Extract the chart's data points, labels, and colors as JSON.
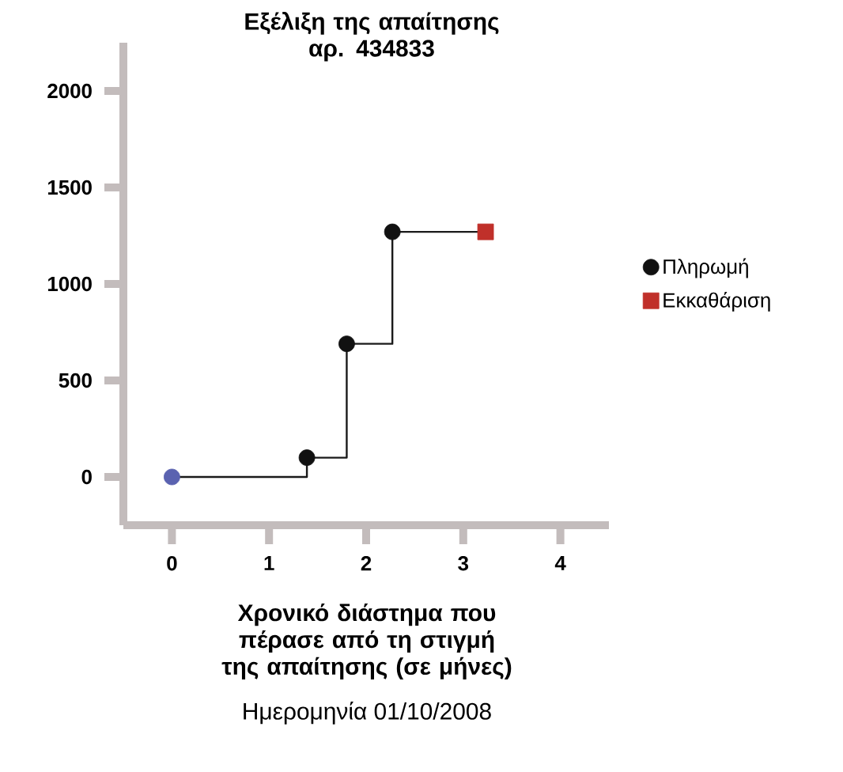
{
  "chart_data": {
    "type": "scatter",
    "title": "Εξέλιξη της απαίτησης αρ. 434833",
    "xlabel": "Χρονικό διάστημα που πέρασε από τη στιγμή της απαίτησης (σε μήνες)",
    "annotations": [
      "Ημερομηνία 01/10/2008"
    ],
    "xlim": [
      -0.5,
      4.5
    ],
    "ylim": [
      -250,
      2250
    ],
    "xticks": [
      0,
      1,
      2,
      3,
      4
    ],
    "yticks": [
      0,
      500,
      1000,
      1500,
      2000
    ],
    "legend": "right",
    "grid": false,
    "series": [
      {
        "type": "step",
        "color": "#1a1a1a",
        "x": [
          0,
          1.39,
          1.8,
          2.27,
          3.23
        ],
        "values": [
          0,
          100,
          690,
          1270,
          1270
        ],
        "marker": "none"
      },
      {
        "color": "#5a62b0",
        "x": [
          0
        ],
        "values": [
          0
        ],
        "marker": "circle"
      },
      {
        "name": "Πληρωμή",
        "color": "#111111",
        "x": [
          1.39,
          1.8,
          2.27
        ],
        "values": [
          100,
          690,
          1270
        ],
        "marker": "circle"
      },
      {
        "name": "Εκκαθάριση",
        "color": "#c0302a",
        "x": [
          3.23
        ],
        "values": [
          1270
        ],
        "marker": "square"
      }
    ]
  }
}
